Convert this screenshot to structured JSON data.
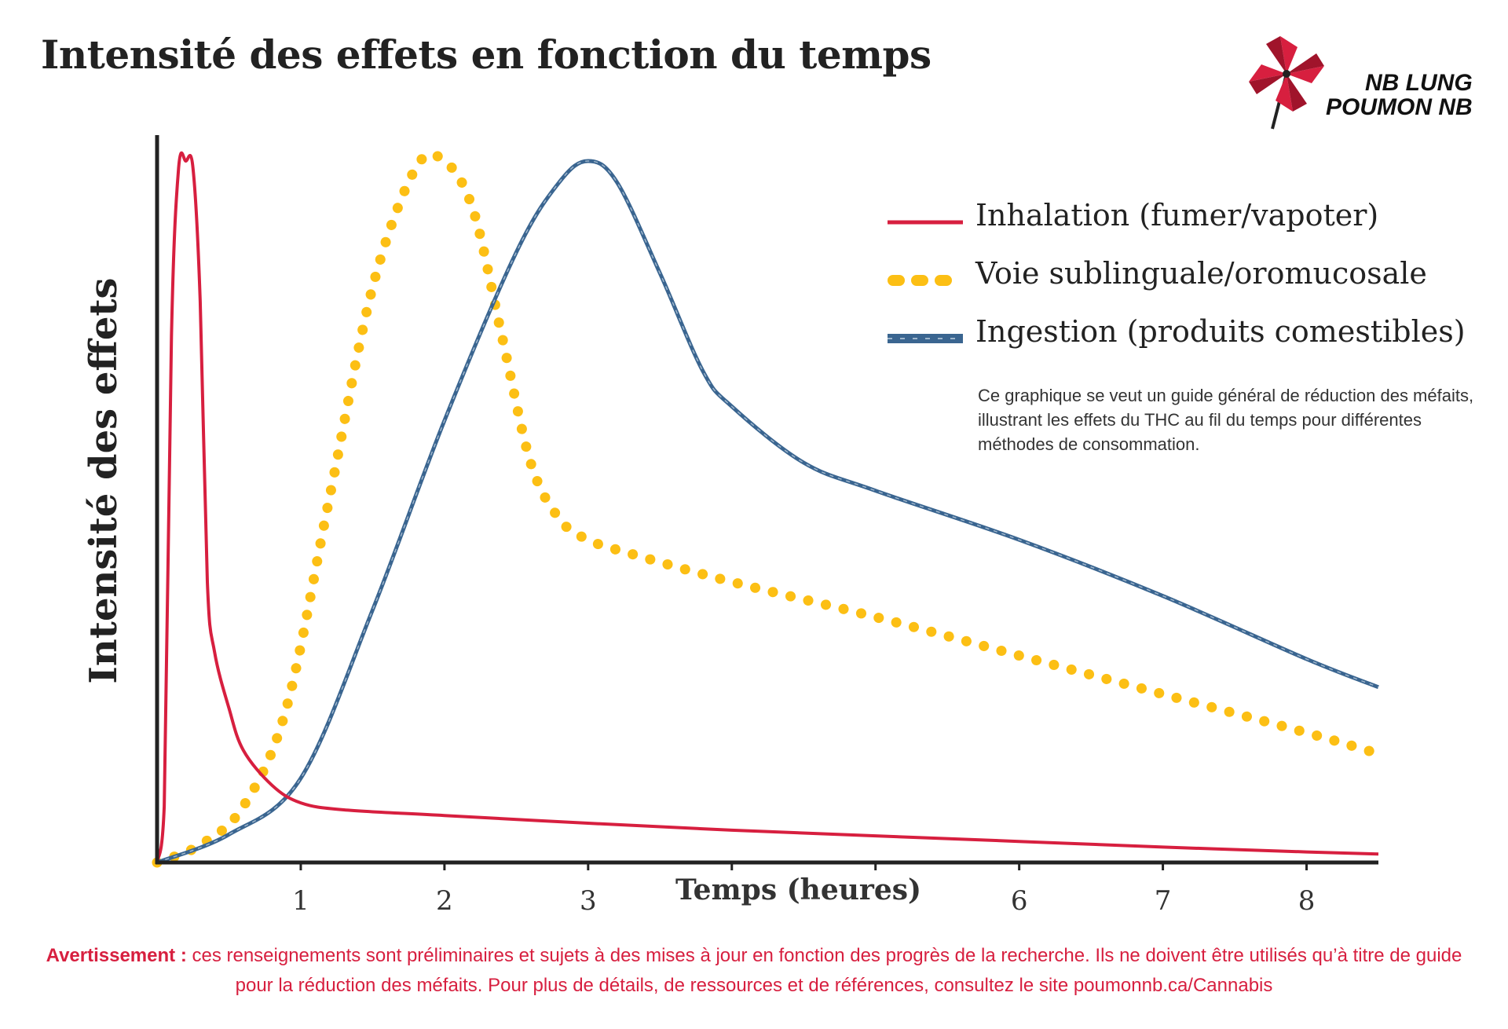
{
  "page": {
    "title": "Intensité des effets en fonction du temps",
    "logo": {
      "line1": "NB LUNG",
      "line2": "POUMON NB",
      "icon": "pinwheel-icon"
    },
    "note": "Ce graphique se veut un guide général de réduction des méfaits, illustrant les effets du THC au fil du temps pour différentes méthodes de consommation.",
    "footer": {
      "label": "Avertissement :",
      "text": " ces renseignements sont préliminaires et sujets à des mises à jour en fonction des progrès de la recherche. Ils ne doivent être utilisés qu’à titre de guide pour la réduction des méfaits. Pour plus de détails, de ressources et de références, consultez le site poumonnb.ca/Cannabis"
    }
  },
  "colors": {
    "inhalation": "#d71f3f",
    "sublingual": "#fcbf14",
    "ingestion": "#3a6590",
    "axis": "#222222",
    "brand_red": "#d71f3f"
  },
  "chart_data": {
    "type": "line",
    "xlabel": "Temps (heures)",
    "ylabel": "Intensité des effets",
    "xlim": [
      0,
      8.5
    ],
    "ylim": [
      0,
      100
    ],
    "x_ticks": [
      1,
      2,
      3,
      4,
      5,
      6,
      7,
      8
    ],
    "x_tick_labels": [
      "1",
      "2",
      "3",
      "",
      "",
      "6",
      "7",
      "8"
    ],
    "grid": false,
    "legend_position": "top-right",
    "series": [
      {
        "name": "Inhalation (fumer/vapoter)",
        "style": "solid",
        "x": [
          0,
          0.05,
          0.1,
          0.15,
          0.2,
          0.25,
          0.3,
          0.35,
          0.4,
          0.5,
          0.6,
          0.8,
          1.0,
          1.3,
          2.0,
          3.0,
          4.0,
          5.0,
          6.0,
          7.0,
          8.0,
          8.5
        ],
        "y": [
          0,
          8,
          75,
          99,
          100,
          99,
          80,
          40,
          30,
          22,
          16,
          11,
          8.5,
          7.5,
          6.7,
          5.6,
          4.6,
          3.8,
          3.0,
          2.2,
          1.5,
          1.2
        ]
      },
      {
        "name": "Voie sublinguale/oromucosale",
        "style": "dotted",
        "x": [
          0,
          0.3,
          0.6,
          0.9,
          1.2,
          1.5,
          1.8,
          2.0,
          2.2,
          2.4,
          2.6,
          2.8,
          3.0,
          3.3,
          4.0,
          5.0,
          6.0,
          7.0,
          8.0,
          8.5
        ],
        "y": [
          0,
          2.5,
          8,
          22,
          52,
          82,
          99,
          100,
          93,
          75,
          57,
          49,
          46,
          44,
          40,
          35,
          29.5,
          24,
          18.5,
          15.5
        ]
      },
      {
        "name": "Ingestion (produits comestibles)",
        "style": "dashed",
        "x": [
          0,
          0.5,
          1.0,
          1.5,
          2.0,
          2.5,
          2.8,
          3.0,
          3.2,
          3.5,
          3.8,
          4.0,
          4.5,
          5.0,
          6.0,
          7.0,
          8.0,
          8.5
        ],
        "y": [
          0,
          4,
          12,
          36,
          63,
          87,
          97,
          100,
          97,
          84,
          70,
          65,
          57,
          53,
          46,
          38,
          29,
          25
        ]
      }
    ]
  }
}
